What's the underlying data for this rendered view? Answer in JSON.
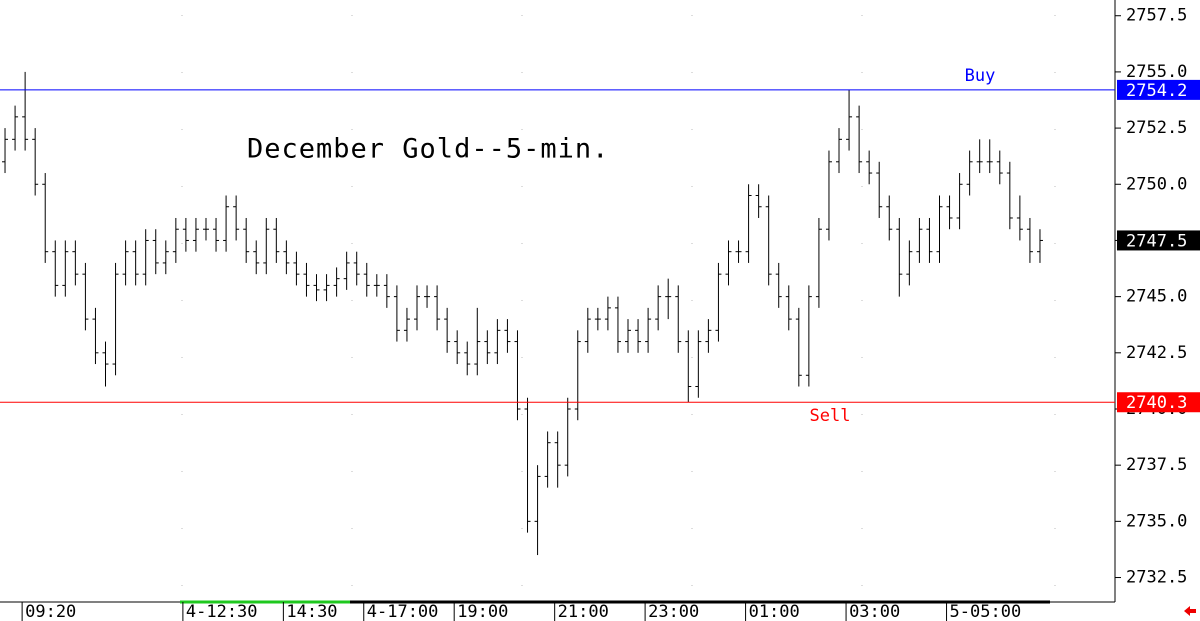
{
  "chart_data": {
    "type": "ohlc",
    "title": "December Gold--5-min.",
    "color": "#000000",
    "categories": [
      null,
      null,
      "09:20",
      null,
      null,
      null,
      null,
      null,
      null,
      null,
      null,
      null,
      null,
      null,
      null,
      null,
      null,
      null,
      "4-12:30",
      null,
      null,
      null,
      null,
      null,
      null,
      null,
      null,
      null,
      "14:30",
      null,
      null,
      null,
      null,
      null,
      null,
      null,
      "4-17:00",
      null,
      null,
      null,
      null,
      null,
      null,
      null,
      null,
      "19:00",
      null,
      null,
      null,
      null,
      null,
      null,
      null,
      null,
      null,
      "21:00",
      null,
      null,
      null,
      null,
      null,
      null,
      null,
      null,
      "23:00",
      null,
      null,
      null,
      null,
      null,
      null,
      null,
      null,
      null,
      "01:00",
      null,
      null,
      null,
      null,
      null,
      null,
      null,
      null,
      null,
      "03:00",
      null,
      null,
      null,
      null,
      null,
      null,
      null,
      null,
      null,
      "5-05:00",
      null,
      null,
      null,
      null,
      null,
      null,
      null,
      null,
      null
    ],
    "open": [
      2751,
      2752,
      2753,
      2752,
      2750,
      2747,
      2745.5,
      2747,
      2746,
      2744,
      2742.5,
      2742,
      2746,
      2747,
      2746,
      2747.5,
      2746.5,
      2747,
      2748,
      2747.5,
      2748,
      2748,
      2747.5,
      2749,
      2748,
      2747,
      2746.5,
      2748,
      2747,
      2746.5,
      2746,
      2745.5,
      2745.3,
      2745.5,
      2745.8,
      2746.5,
      2746,
      2745.5,
      2745.5,
      2745,
      2743.5,
      2744,
      2745,
      2745,
      2744,
      2743,
      2742.5,
      2742,
      2743,
      2742.5,
      2743.5,
      2743,
      2740,
      2735,
      2737,
      2738.5,
      2737.5,
      2740,
      2743,
      2744,
      2744,
      2744.5,
      2743,
      2743.5,
      2743,
      2744,
      2745,
      2745,
      2743,
      2741,
      2743,
      2743.5,
      2746,
      2747,
      2747,
      2749.5,
      2749,
      2746,
      2745,
      2744,
      2741.5,
      2745,
      2748,
      2751,
      2752,
      2753,
      2751,
      2750.5,
      2749,
      2748,
      2746,
      2747,
      2748,
      2747,
      2749,
      2748.5,
      2750,
      2751,
      2751,
      2751,
      2750.5,
      2748.5,
      2748,
      2747
    ],
    "high": [
      2752.5,
      2753.5,
      2755,
      2752.5,
      2750.5,
      2747.5,
      2747.5,
      2747.5,
      2746.5,
      2744.5,
      2743,
      2746.5,
      2747.5,
      2747.5,
      2748,
      2748,
      2747.5,
      2748.5,
      2748.5,
      2748.5,
      2748.5,
      2748.5,
      2749.5,
      2749.5,
      2748.5,
      2747.5,
      2748.5,
      2748.5,
      2747.5,
      2747,
      2746.5,
      2746,
      2746,
      2746.3,
      2747,
      2747,
      2746.5,
      2746,
      2746,
      2745.5,
      2744.5,
      2745.5,
      2745.5,
      2745.5,
      2744.5,
      2743.5,
      2743,
      2744.5,
      2743.5,
      2744,
      2744,
      2743.5,
      2740.5,
      2737.5,
      2739,
      2739,
      2740.5,
      2743.5,
      2744.5,
      2744.5,
      2745,
      2745,
      2744,
      2744,
      2744.5,
      2745.5,
      2745.8,
      2745.5,
      2743.5,
      2743.5,
      2744,
      2746.5,
      2747.5,
      2747.5,
      2750,
      2750,
      2749.5,
      2746.5,
      2745.5,
      2744.5,
      2745.5,
      2748.5,
      2751.5,
      2752.5,
      2754.2,
      2753.5,
      2751.5,
      2751,
      2749.5,
      2748.5,
      2747.5,
      2748.5,
      2748.5,
      2749.5,
      2749.5,
      2750.5,
      2751.5,
      2752,
      2752,
      2751.5,
      2751,
      2749.5,
      2748.5,
      2748
    ],
    "low": [
      2750.5,
      2751.5,
      2751.5,
      2749.5,
      2746.5,
      2745,
      2745,
      2745.5,
      2743.5,
      2742,
      2741,
      2741.5,
      2745.5,
      2745.5,
      2745.5,
      2746,
      2746,
      2746.5,
      2747,
      2747,
      2747.5,
      2747,
      2747,
      2747.5,
      2746.5,
      2746,
      2746,
      2746.5,
      2746,
      2745.5,
      2745,
      2744.8,
      2744.8,
      2745,
      2745.3,
      2745.5,
      2745,
      2745,
      2744.5,
      2743,
      2743,
      2743.5,
      2744.5,
      2743.5,
      2742.5,
      2742,
      2741.5,
      2741.5,
      2742,
      2742,
      2742.5,
      2739.5,
      2734.5,
      2733.5,
      2736.5,
      2736.5,
      2737,
      2739.5,
      2742.5,
      2743.5,
      2743.5,
      2742.5,
      2742.5,
      2742.5,
      2742.5,
      2743.5,
      2744,
      2742.5,
      2740.3,
      2740.5,
      2742.5,
      2743,
      2745.5,
      2746.5,
      2746.5,
      2748.5,
      2745.5,
      2744.5,
      2743.5,
      2741,
      2741,
      2744.5,
      2747.5,
      2750.5,
      2751.5,
      2750.5,
      2750,
      2748.5,
      2747.5,
      2745,
      2745.5,
      2746.5,
      2746.5,
      2746.5,
      2748,
      2748,
      2749.5,
      2750.5,
      2750.5,
      2750,
      2748,
      2747.5,
      2746.5,
      2746.5
    ],
    "close": [
      2752,
      2753,
      2752,
      2750,
      2747,
      2745.5,
      2747,
      2746,
      2744,
      2742.5,
      2742,
      2746,
      2747,
      2746,
      2747.5,
      2746.5,
      2747,
      2748,
      2747.5,
      2748,
      2748,
      2747.5,
      2749,
      2748,
      2747,
      2746.5,
      2748,
      2747,
      2746.5,
      2746,
      2745.5,
      2745.3,
      2745.5,
      2745.8,
      2746.5,
      2746,
      2745.5,
      2745.5,
      2745,
      2743.5,
      2744,
      2745,
      2745,
      2744,
      2743,
      2742.5,
      2742,
      2743,
      2742.5,
      2743.5,
      2743,
      2740,
      2735,
      2737,
      2738.5,
      2737.5,
      2740,
      2743,
      2744,
      2744,
      2744.5,
      2743,
      2743.5,
      2743,
      2744,
      2745,
      2745,
      2743,
      2741,
      2743,
      2743.5,
      2746,
      2747,
      2747,
      2749.5,
      2749,
      2746,
      2745,
      2744,
      2741.5,
      2745,
      2748,
      2751,
      2752,
      2753,
      2751,
      2750.5,
      2749,
      2748,
      2746,
      2747,
      2748,
      2747,
      2749,
      2748.5,
      2750,
      2751,
      2751,
      2751,
      2750.5,
      2748.5,
      2748,
      2747,
      2747.5
    ],
    "lines": [
      {
        "label": "Buy",
        "value": 2754.2,
        "color": "#0000ff"
      },
      {
        "label": "Sell",
        "value": 2740.3,
        "color": "#ff0000"
      }
    ],
    "ylim": [
      2731.5,
      2758.2
    ],
    "yticks": [
      2732.5,
      {
        "value": 2735,
        "label": "2735.0"
      },
      2737.5,
      {
        "value": 2740,
        "label": "2740.0"
      },
      2742.5,
      {
        "value": 2745,
        "label": "2745.0"
      },
      2747.5,
      {
        "value": 2750,
        "label": "2750.0"
      },
      2752.5,
      {
        "value": 2755,
        "label": "2755.0"
      },
      2757.5
    ]
  }
}
